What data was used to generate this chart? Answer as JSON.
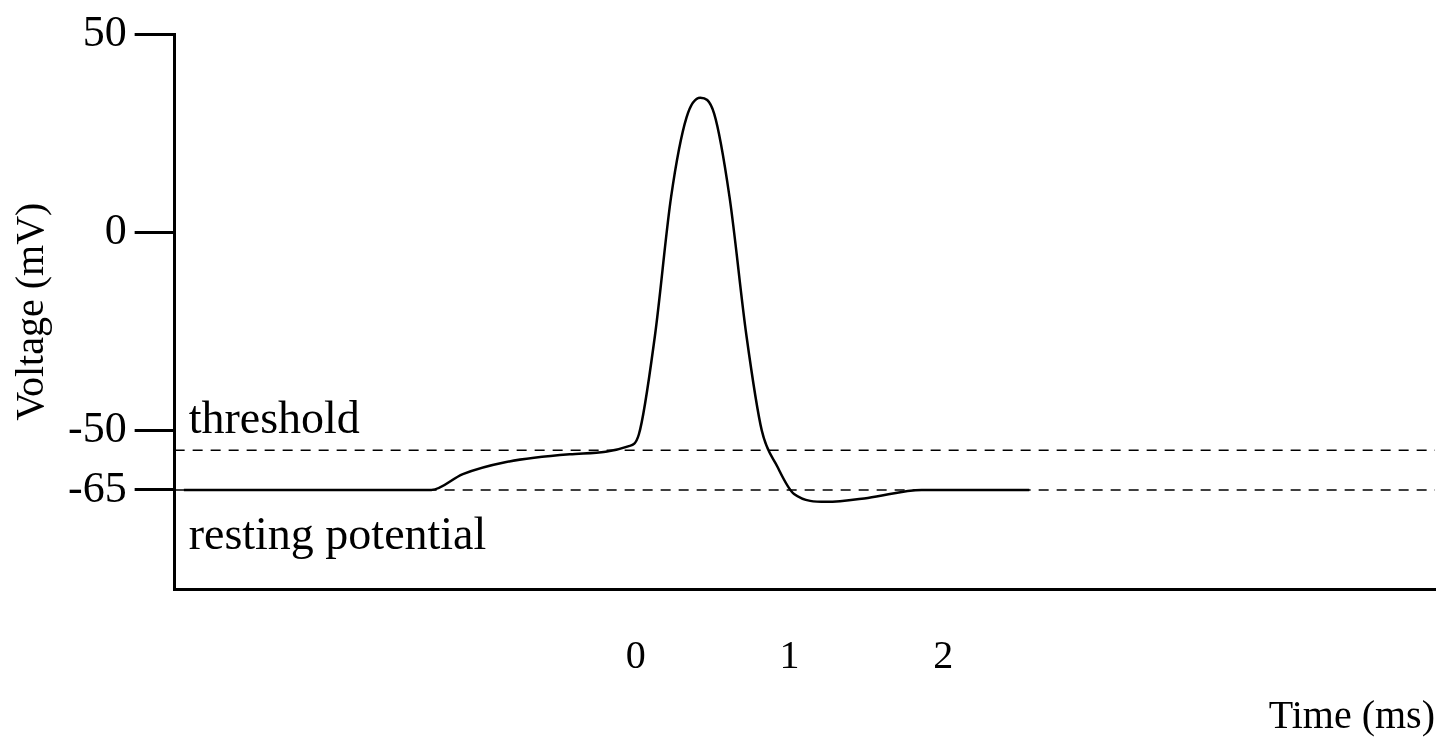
{
  "chart_data": {
    "type": "line",
    "xlabel": "Time (ms)",
    "ylabel": "Voltage (mV)",
    "x": [
      -2.94,
      -1.33,
      -1.125,
      -0.85,
      -0.43,
      -0.05,
      0.02,
      0.125,
      0.23,
      0.33,
      0.42,
      0.51,
      0.61,
      0.72,
      0.82,
      0.92,
      1.03,
      1.24,
      1.51,
      1.86,
      2.56
    ],
    "values": [
      -65,
      -65,
      -61,
      -58,
      -56,
      -54,
      -51,
      -26,
      9,
      29,
      34,
      30,
      9,
      -26,
      -50,
      -59,
      -66,
      -68,
      -67,
      -65,
      -65
    ],
    "color": "#000000",
    "line_style": "solid",
    "marker": "none",
    "xlim": [
      -3,
      5.2
    ],
    "ylim": [
      -90,
      50
    ],
    "xticks": [
      0,
      1,
      2
    ],
    "yticks": [
      -65,
      -50,
      0,
      50
    ],
    "grid": false,
    "legend": false,
    "ref_lines": [
      {
        "axis": "y",
        "value": -55,
        "label": "threshold",
        "line_style": "dashed"
      },
      {
        "axis": "y",
        "value": -65,
        "label": "resting potential",
        "line_style": "dashed"
      }
    ]
  }
}
